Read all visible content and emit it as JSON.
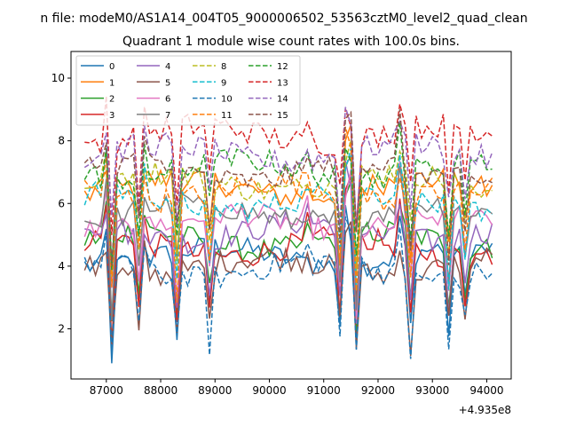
{
  "chart_data": {
    "type": "line",
    "suptitle": "n file: modeM0/AS1A14_004T05_9000006502_53563cztM0_level2_quad_clean",
    "title": "Quadrant 1 module wise count rates with 100.0s bins.",
    "xlabel": "",
    "ylabel": "",
    "x_offset_label": "+4.935e8",
    "xlim": [
      86350,
      94450
    ],
    "ylim": [
      0.4,
      10.85
    ],
    "xticks": [
      87000,
      88000,
      89000,
      90000,
      91000,
      92000,
      93000,
      94000
    ],
    "xtick_labels": [
      "87000",
      "88000",
      "89000",
      "90000",
      "91000",
      "92000",
      "93000",
      "94000"
    ],
    "yticks": [
      2,
      4,
      6,
      8,
      10
    ],
    "ytick_labels": [
      "2",
      "4",
      "6",
      "8",
      "10"
    ],
    "legend": {
      "location": "upper-left",
      "columns": 4
    },
    "series": [
      {
        "name": "0",
        "color": "#1f77b4",
        "dash": "solid",
        "offset": 4.3
      },
      {
        "name": "1",
        "color": "#ff7f0e",
        "dash": "solid",
        "offset": 6.5
      },
      {
        "name": "2",
        "color": "#2ca02c",
        "dash": "solid",
        "offset": 4.8
      },
      {
        "name": "3",
        "color": "#d62728",
        "dash": "solid",
        "offset": 4.6
      },
      {
        "name": "4",
        "color": "#9467bd",
        "dash": "solid",
        "offset": 5.1
      },
      {
        "name": "5",
        "color": "#8c564b",
        "dash": "solid",
        "offset": 4.0
      },
      {
        "name": "6",
        "color": "#e377c2",
        "dash": "solid",
        "offset": 5.4
      },
      {
        "name": "7",
        "color": "#7f7f7f",
        "dash": "solid",
        "offset": 5.7
      },
      {
        "name": "8",
        "color": "#bcbd22",
        "dash": "dashed",
        "offset": 6.7
      },
      {
        "name": "9",
        "color": "#17becf",
        "dash": "dashed",
        "offset": 6.1
      },
      {
        "name": "10",
        "color": "#1f77b4",
        "dash": "dashed",
        "offset": 3.9
      },
      {
        "name": "11",
        "color": "#ff7f0e",
        "dash": "dashed",
        "offset": 6.4
      },
      {
        "name": "12",
        "color": "#2ca02c",
        "dash": "dashed",
        "offset": 7.1
      },
      {
        "name": "13",
        "color": "#d62728",
        "dash": "dashed",
        "offset": 8.2
      },
      {
        "name": "14",
        "color": "#9467bd",
        "dash": "dashed",
        "offset": 7.6
      },
      {
        "name": "15",
        "color": "#8c564b",
        "dash": "dashed",
        "offset": 7.0
      }
    ]
  }
}
